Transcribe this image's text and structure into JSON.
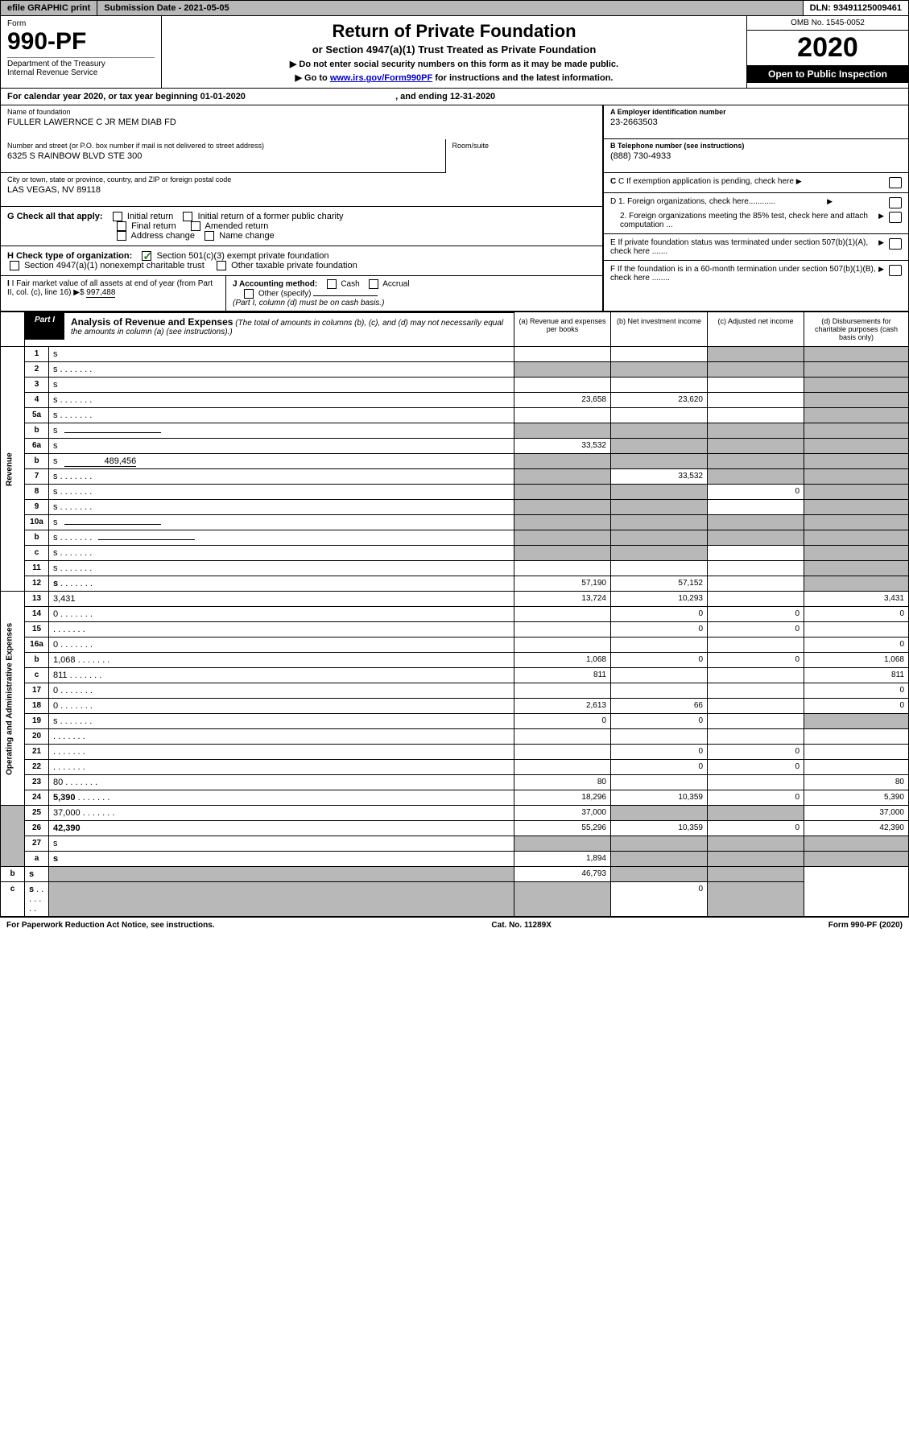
{
  "topbar": {
    "efile": "efile GRAPHIC print",
    "subdate": "Submission Date - 2021-05-05",
    "dln": "DLN: 93491125009461"
  },
  "header": {
    "form_label": "Form",
    "form_num": "990-PF",
    "dept": "Department of the Treasury\nInternal Revenue Service",
    "title": "Return of Private Foundation",
    "subtitle": "or Section 4947(a)(1) Trust Treated as Private Foundation",
    "note1": "▶ Do not enter social security numbers on this form as it may be made public.",
    "note2_pre": "▶ Go to ",
    "note2_link": "www.irs.gov/Form990PF",
    "note2_post": " for instructions and the latest information.",
    "omb": "OMB No. 1545-0052",
    "year": "2020",
    "open": "Open to Public Inspection"
  },
  "calyear": {
    "pre": "For calendar year 2020, or tax year beginning ",
    "begin": "01-01-2020",
    "mid": " , and ending ",
    "end": "12-31-2020"
  },
  "info": {
    "name_lbl": "Name of foundation",
    "name": "FULLER LAWERNCE C JR MEM DIAB FD",
    "addr_lbl": "Number and street (or P.O. box number if mail is not delivered to street address)",
    "addr": "6325 S RAINBOW BLVD STE 300",
    "room_lbl": "Room/suite",
    "city_lbl": "City or town, state or province, country, and ZIP or foreign postal code",
    "city": "LAS VEGAS, NV  89118",
    "ein_lbl": "A Employer identification number",
    "ein": "23-2663503",
    "tel_lbl": "B Telephone number (see instructions)",
    "tel": "(888) 730-4933",
    "c_lbl": "C If exemption application is pending, check here",
    "d1": "D 1. Foreign organizations, check here............",
    "d2": "2. Foreign organizations meeting the 85% test, check here and attach computation ...",
    "e": "E  If private foundation status was terminated under section 507(b)(1)(A), check here .......",
    "f": "F  If the foundation is in a 60-month termination under section 507(b)(1)(B), check here ........"
  },
  "g": {
    "lbl": "G Check all that apply:",
    "opts": [
      "Initial return",
      "Initial return of a former public charity",
      "Final return",
      "Amended return",
      "Address change",
      "Name change"
    ]
  },
  "h": {
    "lbl": "H Check type of organization:",
    "o1": "Section 501(c)(3) exempt private foundation",
    "o2": "Section 4947(a)(1) nonexempt charitable trust",
    "o3": "Other taxable private foundation"
  },
  "i": {
    "lbl": "I Fair market value of all assets at end of year (from Part II, col. (c), line 16)",
    "val": "997,488"
  },
  "j": {
    "lbl": "J Accounting method:",
    "cash": "Cash",
    "accrual": "Accrual",
    "other": "Other (specify)",
    "note": "(Part I, column (d) must be on cash basis.)"
  },
  "part1": {
    "tab": "Part I",
    "title": "Analysis of Revenue and Expenses",
    "title_note": "(The total of amounts in columns (b), (c), and (d) may not necessarily equal the amounts in column (a) (see instructions).)",
    "col_a": "(a)  Revenue and expenses per books",
    "col_b": "(b)  Net investment income",
    "col_c": "(c)  Adjusted net income",
    "col_d": "(d)  Disbursements for charitable purposes (cash basis only)"
  },
  "vlabels": {
    "rev": "Revenue",
    "exp": "Operating and Administrative Expenses"
  },
  "rows": [
    {
      "n": "1",
      "d": "s",
      "a": "",
      "b": "",
      "c": "s"
    },
    {
      "n": "2",
      "d": "s",
      "a": "s",
      "b": "s",
      "c": "s",
      "dots": true
    },
    {
      "n": "3",
      "d": "s",
      "a": "",
      "b": "",
      "c": ""
    },
    {
      "n": "4",
      "d": "s",
      "a": "23,658",
      "b": "23,620",
      "c": "",
      "dots": true
    },
    {
      "n": "5a",
      "d": "s",
      "a": "",
      "b": "",
      "c": "",
      "dots": true
    },
    {
      "n": "b",
      "d": "s",
      "a": "s",
      "b": "s",
      "c": "s",
      "uline": true
    },
    {
      "n": "6a",
      "d": "s",
      "a": "33,532",
      "b": "s",
      "c": "s"
    },
    {
      "n": "b",
      "d": "s",
      "a": "s",
      "b": "s",
      "c": "s",
      "uval": "489,456"
    },
    {
      "n": "7",
      "d": "s",
      "a": "s",
      "b": "33,532",
      "c": "s",
      "dots": true
    },
    {
      "n": "8",
      "d": "s",
      "a": "s",
      "b": "s",
      "c": "0",
      "dots": true
    },
    {
      "n": "9",
      "d": "s",
      "a": "s",
      "b": "s",
      "c": "",
      "dots": true
    },
    {
      "n": "10a",
      "d": "s",
      "a": "s",
      "b": "s",
      "c": "s",
      "uline": true
    },
    {
      "n": "b",
      "d": "s",
      "a": "s",
      "b": "s",
      "c": "s",
      "uline": true,
      "dots": true
    },
    {
      "n": "c",
      "d": "s",
      "a": "s",
      "b": "s",
      "c": "",
      "dots": true
    },
    {
      "n": "11",
      "d": "s",
      "a": "",
      "b": "",
      "c": "",
      "dots": true
    },
    {
      "n": "12",
      "d": "s",
      "a": "57,190",
      "b": "57,152",
      "c": "",
      "bold": true,
      "dots": true
    },
    {
      "n": "13",
      "d": "3,431",
      "a": "13,724",
      "b": "10,293",
      "c": ""
    },
    {
      "n": "14",
      "d": "0",
      "a": "",
      "b": "0",
      "c": "0",
      "dots": true
    },
    {
      "n": "15",
      "d": "",
      "a": "",
      "b": "0",
      "c": "0",
      "dots": true
    },
    {
      "n": "16a",
      "d": "0",
      "a": "",
      "b": "",
      "c": "",
      "dots": true
    },
    {
      "n": "b",
      "d": "1,068",
      "a": "1,068",
      "b": "0",
      "c": "0",
      "dots": true
    },
    {
      "n": "c",
      "d": "811",
      "a": "811",
      "b": "",
      "c": "",
      "dots": true
    },
    {
      "n": "17",
      "d": "0",
      "a": "",
      "b": "",
      "c": "",
      "dots": true
    },
    {
      "n": "18",
      "d": "0",
      "a": "2,613",
      "b": "66",
      "c": "",
      "dots": true
    },
    {
      "n": "19",
      "d": "s",
      "a": "0",
      "b": "0",
      "c": "",
      "dots": true
    },
    {
      "n": "20",
      "d": "",
      "a": "",
      "b": "",
      "c": "",
      "dots": true
    },
    {
      "n": "21",
      "d": "",
      "a": "",
      "b": "0",
      "c": "0",
      "dots": true
    },
    {
      "n": "22",
      "d": "",
      "a": "",
      "b": "0",
      "c": "0",
      "dots": true
    },
    {
      "n": "23",
      "d": "80",
      "a": "80",
      "b": "",
      "c": "",
      "dots": true
    },
    {
      "n": "24",
      "d": "5,390",
      "a": "18,296",
      "b": "10,359",
      "c": "0",
      "bold": true,
      "dots": true
    },
    {
      "n": "25",
      "d": "37,000",
      "a": "37,000",
      "b": "s",
      "c": "s",
      "dots": true
    },
    {
      "n": "26",
      "d": "42,390",
      "a": "55,296",
      "b": "10,359",
      "c": "0",
      "bold": true
    },
    {
      "n": "27",
      "d": "s",
      "a": "s",
      "b": "s",
      "c": "s"
    },
    {
      "n": "a",
      "d": "s",
      "a": "1,894",
      "b": "s",
      "c": "s",
      "bold": true
    },
    {
      "n": "b",
      "d": "s",
      "a": "s",
      "b": "46,793",
      "c": "s",
      "bold": true
    },
    {
      "n": "c",
      "d": "s",
      "a": "s",
      "b": "s",
      "c": "0",
      "bold": true,
      "dots": true
    }
  ],
  "footer": {
    "left": "For Paperwork Reduction Act Notice, see instructions.",
    "mid": "Cat. No. 11289X",
    "right": "Form 990-PF (2020)"
  }
}
